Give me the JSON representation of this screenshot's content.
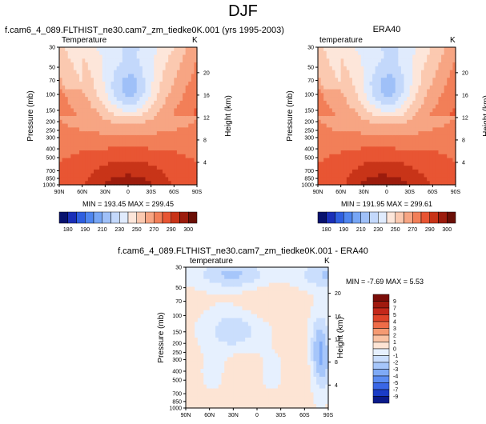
{
  "header": {
    "title": "DJF"
  },
  "colors": {
    "temp_scale": [
      "#08126e",
      "#1a2fb8",
      "#2f5fe0",
      "#4f86f0",
      "#77a6f5",
      "#9fc0f8",
      "#c3d8fb",
      "#e0ebfd",
      "#fde6da",
      "#fbc9b0",
      "#f7a583",
      "#f27f58",
      "#e85533",
      "#c83418",
      "#9c1c0d",
      "#6a0f06"
    ],
    "diff_scale": [
      "#0a1a8a",
      "#1a3cc7",
      "#3a67e6",
      "#5b8cf2",
      "#7faaf6",
      "#a6c6fa",
      "#cadefd",
      "#e6f0fe",
      "#fde4d4",
      "#fac3a4",
      "#f59a72",
      "#ee6c48",
      "#df4429",
      "#c4281a",
      "#a01a0f",
      "#7a0c08"
    ]
  },
  "chart_data": [
    {
      "type": "contour",
      "id": "model",
      "title": "f.cam6_4_089.FLTHIST_ne30.cam7_zm_tiedke0K.001 (yrs 1995-2003)",
      "variable": "Temperature",
      "units": "K",
      "ylabel": "Pressure (mb)",
      "ylabel_right": "Height (km)",
      "x_ticks": [
        "90N",
        "60N",
        "30N",
        "0",
        "30S",
        "60S",
        "90S"
      ],
      "y_ticks": [
        "30",
        "50",
        "70",
        "100",
        "150",
        "200",
        "250",
        "300",
        "400",
        "500",
        "700",
        "850",
        "1000"
      ],
      "y_right_ticks": [
        "20",
        "16",
        "12",
        "8",
        "4"
      ],
      "stats": "MIN = 193.45   MAX = 299.45",
      "min": 193.45,
      "max": 299.45,
      "colorbar_labels": [
        "180",
        "190",
        "210",
        "230",
        "250",
        "270",
        "290",
        "300"
      ]
    },
    {
      "type": "contour",
      "id": "obs",
      "title": "ERA40",
      "variable": "temperature",
      "units": "K",
      "ylabel": "Pressure (mb)",
      "ylabel_right": "Height (km)",
      "x_ticks": [
        "90N",
        "60N",
        "30N",
        "0",
        "30S",
        "60S",
        "90S"
      ],
      "y_ticks": [
        "30",
        "50",
        "70",
        "100",
        "150",
        "200",
        "250",
        "300",
        "400",
        "500",
        "700",
        "850",
        "1000"
      ],
      "y_right_ticks": [
        "20",
        "16",
        "12",
        "8",
        "4"
      ],
      "stats": "MIN = 191.95   MAX = 299.61",
      "min": 191.95,
      "max": 299.61,
      "colorbar_labels": [
        "180",
        "190",
        "210",
        "230",
        "250",
        "270",
        "290",
        "300"
      ]
    },
    {
      "type": "contour",
      "id": "diff",
      "title": "f.cam6_4_089.FLTHIST_ne30.cam7_zm_tiedke0K.001 - ERA40",
      "variable": "temperature",
      "units": "K",
      "ylabel": "Pressure (mb)",
      "ylabel_right": "Height (km)",
      "x_ticks": [
        "90N",
        "60N",
        "30N",
        "0",
        "30S",
        "60S",
        "90S"
      ],
      "y_ticks": [
        "30",
        "50",
        "70",
        "100",
        "150",
        "200",
        "250",
        "300",
        "400",
        "500",
        "700",
        "850",
        "1000"
      ],
      "y_right_ticks": [
        "20",
        "16",
        "12",
        "8",
        "4"
      ],
      "stats": "MIN = -7.69   MAX =  5.53",
      "min": -7.69,
      "max": 5.53,
      "colorbar_labels": [
        "9",
        "7",
        "5",
        "4",
        "3",
        "2",
        "1",
        "0",
        "-1",
        "-2",
        "-3",
        "-4",
        "-5",
        "-7",
        "-9"
      ]
    }
  ]
}
